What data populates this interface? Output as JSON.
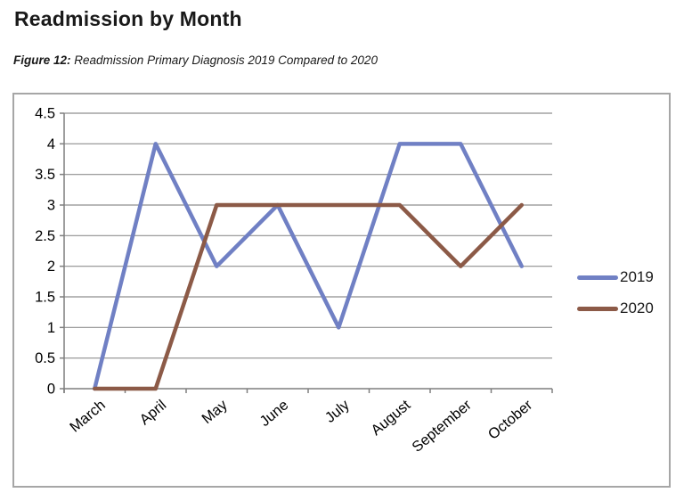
{
  "page": {
    "title": "Readmission by Month",
    "caption_label": "Figure 12:",
    "caption_text": "Readmission Primary Diagnosis 2019 Compared to 2020"
  },
  "chart_data": {
    "type": "line",
    "title": "Readmission by Month",
    "subtitle": "Figure 12: Readmission Primary Diagnosis 2019 Compared to 2020",
    "categories": [
      "March",
      "April",
      "May",
      "June",
      "July",
      "August",
      "September",
      "October"
    ],
    "series": [
      {
        "name": "2019",
        "color": "#7080C4",
        "values": [
          0,
          4,
          2,
          3,
          1,
          4,
          4,
          2
        ]
      },
      {
        "name": "2020",
        "color": "#8C5A47",
        "values": [
          0,
          0,
          3,
          3,
          3,
          3,
          2,
          3
        ]
      }
    ],
    "ylim": [
      0,
      4.5
    ],
    "ytick_step": 0.5,
    "yticks": [
      "0",
      "0.5",
      "1",
      "1.5",
      "2",
      "2.5",
      "3",
      "3.5",
      "4",
      "4.5"
    ],
    "grid": "horizontal",
    "legend_position": "right",
    "gridline_color": "#8f8f8f",
    "axis_color": "#7f7f7f",
    "tick_label_color": "#000000",
    "frame_border_color": "#a6a6a6"
  }
}
